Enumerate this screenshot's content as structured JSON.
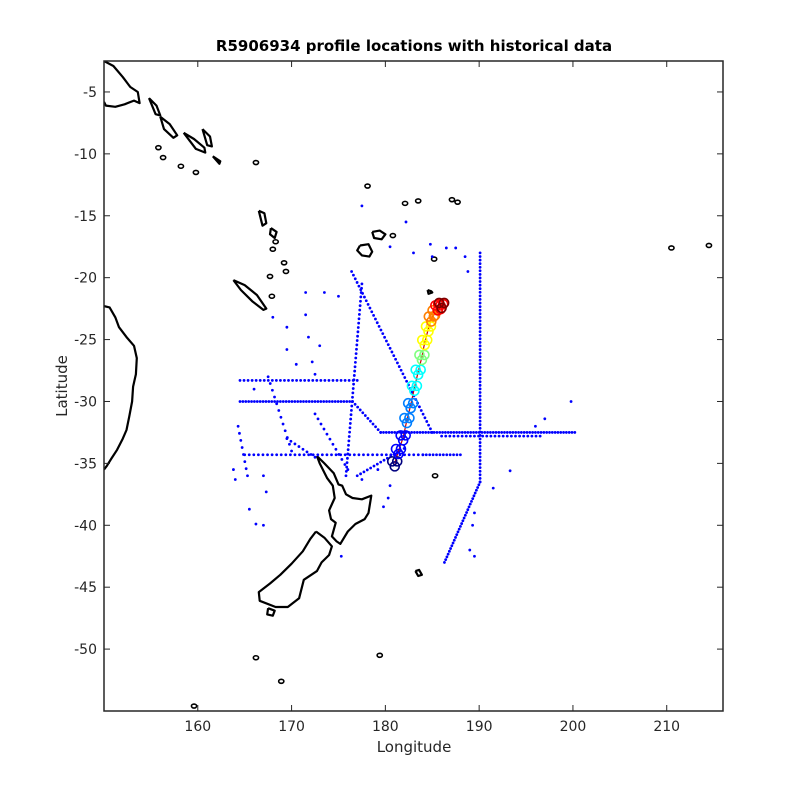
{
  "chart_data": {
    "type": "scatter",
    "title": "R5906934 profile locations with historical data",
    "xlabel": "Longitude",
    "ylabel": "Latitude",
    "xlim": [
      150,
      216
    ],
    "ylim": [
      -55,
      -2.5
    ],
    "x_ticks": [
      160,
      170,
      180,
      190,
      200,
      210
    ],
    "y_ticks": [
      -5,
      -10,
      -15,
      -20,
      -25,
      -30,
      -35,
      -40,
      -45,
      -50
    ],
    "grid": false,
    "colors": {
      "historical": "#0000ff",
      "coastline": "#000000",
      "track": "#cc0000",
      "colormap": [
        "#00007f",
        "#0000ff",
        "#007fff",
        "#00ffff",
        "#7fff7f",
        "#ffff00",
        "#ff7f00",
        "#ff0000",
        "#7f0000"
      ]
    },
    "series": [
      {
        "role": "historical profile locations",
        "tracks": [
          {
            "lon": [
              176.4,
              185.0
            ],
            "lat": [
              -19.5,
              -32.5
            ],
            "n": 45
          },
          {
            "lon": [
              177.5,
              175.8
            ],
            "lat": [
              -20.5,
              -36.0
            ],
            "n": 45
          },
          {
            "lon": [
              190.1,
              190.1
            ],
            "lat": [
              -18.0,
              -36.5
            ],
            "n": 65
          },
          {
            "lon": [
              190.1,
              186.3
            ],
            "lat": [
              -36.5,
              -43.0
            ],
            "n": 30
          },
          {
            "lon": [
              164.5,
              176.5
            ],
            "lat": [
              -30.0,
              -30.0
            ],
            "n": 40
          },
          {
            "lon": [
              176.5,
              179.5
            ],
            "lat": [
              -30.0,
              -32.5
            ],
            "n": 12
          },
          {
            "lon": [
              179.5,
              200.2
            ],
            "lat": [
              -32.5,
              -32.5
            ],
            "n": 70
          },
          {
            "lon": [
              165.0,
              184.0
            ],
            "lat": [
              -34.3,
              -34.3
            ],
            "n": 40
          },
          {
            "lon": [
              164.5,
              177.0
            ],
            "lat": [
              -28.3,
              -28.3
            ],
            "n": 30
          },
          {
            "lon": [
              177.0,
              182.0
            ],
            "lat": [
              -36.0,
              -33.8
            ],
            "n": 15
          },
          {
            "lon": [
              184.0,
              188.0
            ],
            "lat": [
              -34.3,
              -34.3
            ],
            "n": 12
          },
          {
            "lon": [
              186.0,
              196.5
            ],
            "lat": [
              -32.8,
              -32.8
            ],
            "n": 25
          },
          {
            "lon": [
              172.5,
              176.0
            ],
            "lat": [
              -31.0,
              -35.5
            ],
            "n": 12
          },
          {
            "lon": [
              167.5,
              170.0
            ],
            "lat": [
              -28.0,
              -34.0
            ],
            "n": 12
          },
          {
            "lon": [
              164.3,
              165.3
            ],
            "lat": [
              -32.0,
              -36.0
            ],
            "n": 8
          },
          {
            "lon": [
              169.5,
              172.5
            ],
            "lat": [
              -33.0,
              -34.5
            ],
            "n": 8
          }
        ],
        "points": [
          {
            "lon": 171.5,
            "lat": -21.2
          },
          {
            "lon": 173.5,
            "lat": -21.2
          },
          {
            "lon": 175.0,
            "lat": -21.5
          },
          {
            "lon": 168.0,
            "lat": -23.2
          },
          {
            "lon": 169.5,
            "lat": -24.0
          },
          {
            "lon": 169.5,
            "lat": -25.8
          },
          {
            "lon": 171.5,
            "lat": -23.0
          },
          {
            "lon": 171.8,
            "lat": -24.8
          },
          {
            "lon": 172.2,
            "lat": -26.8
          },
          {
            "lon": 172.5,
            "lat": -27.8
          },
          {
            "lon": 173.0,
            "lat": -25.5
          },
          {
            "lon": 170.5,
            "lat": -27.0
          },
          {
            "lon": 177.5,
            "lat": -14.2
          },
          {
            "lon": 182.2,
            "lat": -15.5
          },
          {
            "lon": 180.5,
            "lat": -17.5
          },
          {
            "lon": 184.8,
            "lat": -17.3
          },
          {
            "lon": 185.0,
            "lat": -18.3
          },
          {
            "lon": 186.5,
            "lat": -17.6
          },
          {
            "lon": 187.5,
            "lat": -17.6
          },
          {
            "lon": 188.5,
            "lat": -18.3
          },
          {
            "lon": 188.8,
            "lat": -19.5
          },
          {
            "lon": 183.0,
            "lat": -18.0
          },
          {
            "lon": 193.3,
            "lat": -35.6
          },
          {
            "lon": 191.5,
            "lat": -37.0
          },
          {
            "lon": 189.5,
            "lat": -39.0
          },
          {
            "lon": 189.3,
            "lat": -40.0
          },
          {
            "lon": 189.0,
            "lat": -42.0
          },
          {
            "lon": 189.5,
            "lat": -42.5
          },
          {
            "lon": 197.0,
            "lat": -31.4
          },
          {
            "lon": 199.8,
            "lat": -30.0
          },
          {
            "lon": 196.0,
            "lat": -32.0
          },
          {
            "lon": 165.5,
            "lat": -38.7
          },
          {
            "lon": 166.2,
            "lat": -39.9
          },
          {
            "lon": 167.0,
            "lat": -40.0
          },
          {
            "lon": 167.0,
            "lat": -36.0
          },
          {
            "lon": 167.3,
            "lat": -37.3
          },
          {
            "lon": 175.3,
            "lat": -42.5
          },
          {
            "lon": 179.2,
            "lat": -35.5
          },
          {
            "lon": 180.5,
            "lat": -36.8
          },
          {
            "lon": 180.3,
            "lat": -37.8
          },
          {
            "lon": 179.8,
            "lat": -38.5
          },
          {
            "lon": 163.8,
            "lat": -35.5
          },
          {
            "lon": 164.0,
            "lat": -36.3
          },
          {
            "lon": 166.0,
            "lat": -29.0
          },
          {
            "lon": 177.5,
            "lat": -36.3
          }
        ]
      },
      {
        "role": "float trajectory",
        "lon": [
          181.0,
          181.4,
          181.9,
          182.3,
          182.7,
          183.1,
          183.5,
          183.9,
          184.2,
          184.6,
          184.9,
          185.3,
          185.6,
          185.9,
          186.0
        ],
        "lat": [
          -35.0,
          -34.0,
          -32.9,
          -31.5,
          -30.3,
          -28.9,
          -27.6,
          -26.4,
          -25.2,
          -24.1,
          -23.3,
          -22.8,
          -22.4,
          -22.3,
          -22.2
        ]
      }
    ]
  },
  "coastlines": [
    {
      "name": "australia",
      "lon": [
        150,
        150.6,
        151.2,
        151.6,
        152.4,
        153.2,
        153.5,
        153.4,
        153.1,
        153.0,
        152.7,
        152.4,
        152.0,
        151.4,
        150.8,
        150.3,
        150
      ],
      "lat": [
        -22.3,
        -22.4,
        -23.2,
        -24.0,
        -24.8,
        -25.5,
        -26.5,
        -27.8,
        -28.8,
        -30.0,
        -31.2,
        -32.3,
        -33.0,
        -33.9,
        -34.6,
        -35.2,
        -35.5
      ]
    },
    {
      "name": "new-guinea",
      "lon": [
        150,
        151.0,
        152.0,
        152.8,
        153.6,
        153.8,
        153.2,
        152.2,
        151.2,
        150.2,
        150
      ],
      "lat": [
        -2.5,
        -2.9,
        -3.8,
        -4.6,
        -5.0,
        -5.9,
        -5.7,
        -6.0,
        -6.2,
        -6.1,
        -5.8
      ]
    },
    {
      "name": "new-caledonia",
      "lon": [
        163.8,
        165.0,
        166.3,
        167.3,
        167.0,
        165.8,
        164.6,
        163.8
      ],
      "lat": [
        -20.2,
        -20.6,
        -21.4,
        -22.5,
        -22.6,
        -21.9,
        -21.0,
        -20.2
      ]
    },
    {
      "name": "vanuatu-north",
      "lon": [
        166.5,
        167.1,
        167.3,
        166.9,
        166.5
      ],
      "lat": [
        -14.6,
        -14.8,
        -15.6,
        -15.8,
        -14.6
      ]
    },
    {
      "name": "vanuatu-mid",
      "lon": [
        167.8,
        168.4,
        168.2,
        167.7,
        167.8
      ],
      "lat": [
        -16.0,
        -16.3,
        -16.8,
        -16.5,
        -16.0
      ]
    },
    {
      "name": "fiji-vitilevu",
      "lon": [
        177.3,
        178.2,
        178.6,
        178.3,
        177.5,
        177.0,
        177.3
      ],
      "lat": [
        -17.4,
        -17.3,
        -17.9,
        -18.3,
        -18.2,
        -17.8,
        -17.4
      ]
    },
    {
      "name": "fiji-vanualevu",
      "lon": [
        178.6,
        179.4,
        180.0,
        179.6,
        178.8,
        178.6
      ],
      "lat": [
        -16.3,
        -16.2,
        -16.5,
        -16.9,
        -16.8,
        -16.3
      ]
    },
    {
      "name": "solomon-a",
      "lon": [
        156.0,
        157.0,
        157.8,
        157.4,
        156.4,
        156.0
      ],
      "lat": [
        -7.0,
        -7.6,
        -8.5,
        -8.7,
        -8.0,
        -7.0
      ]
    },
    {
      "name": "solomon-b",
      "lon": [
        158.5,
        159.6,
        160.7,
        160.8,
        159.8,
        158.5
      ],
      "lat": [
        -8.3,
        -8.8,
        -9.5,
        -9.9,
        -9.6,
        -8.3
      ]
    },
    {
      "name": "solomon-c",
      "lon": [
        160.5,
        161.3,
        161.5,
        161.0,
        160.5
      ],
      "lat": [
        -8.0,
        -8.6,
        -9.4,
        -9.3,
        -8.0
      ]
    },
    {
      "name": "solomon-d",
      "lon": [
        161.6,
        162.4,
        162.3,
        161.6
      ],
      "lat": [
        -10.2,
        -10.6,
        -10.8,
        -10.2
      ]
    },
    {
      "name": "solomon-e",
      "lon": [
        154.8,
        155.6,
        156.0,
        155.5,
        154.8
      ],
      "lat": [
        -5.5,
        -6.1,
        -6.9,
        -6.8,
        -5.5
      ]
    },
    {
      "name": "nz-north",
      "lon": [
        172.7,
        173.5,
        174.5,
        175.0,
        175.4,
        175.8,
        176.5,
        177.5,
        178.5,
        178.2,
        177.8,
        176.8,
        176.0,
        175.2,
        174.8,
        174.3,
        174.7,
        174.2,
        174.0,
        174.6,
        174.4,
        173.8,
        173.0,
        172.7
      ],
      "lat": [
        -34.4,
        -35.0,
        -35.8,
        -36.7,
        -36.8,
        -37.5,
        -37.8,
        -37.9,
        -37.6,
        -39.0,
        -39.5,
        -39.9,
        -40.5,
        -41.5,
        -41.3,
        -40.9,
        -39.8,
        -39.5,
        -38.8,
        -37.8,
        -36.8,
        -36.2,
        -35.0,
        -34.4
      ]
    },
    {
      "name": "nz-south",
      "lon": [
        172.6,
        173.5,
        174.3,
        174.0,
        173.2,
        172.7,
        171.3,
        170.8,
        169.6,
        168.3,
        166.6,
        166.5,
        167.7,
        168.8,
        170.0,
        171.2,
        172.0,
        172.6
      ],
      "lat": [
        -40.5,
        -41.0,
        -41.7,
        -42.4,
        -43.0,
        -43.7,
        -44.4,
        -45.9,
        -46.6,
        -46.6,
        -46.1,
        -45.4,
        -44.7,
        -44.0,
        -43.1,
        -42.1,
        -41.1,
        -40.5
      ]
    },
    {
      "name": "stewart-island",
      "lon": [
        167.5,
        168.2,
        168.0,
        167.4,
        167.5
      ],
      "lat": [
        -46.7,
        -46.9,
        -47.3,
        -47.2,
        -46.7
      ]
    },
    {
      "name": "chatham",
      "lon": [
        183.2,
        183.6,
        183.9,
        183.5,
        183.2
      ],
      "lat": [
        -43.7,
        -43.6,
        -44.0,
        -44.1,
        -43.7
      ]
    },
    {
      "name": "tonga",
      "lon": [
        184.5,
        184.9,
        185.0,
        184.6,
        184.5
      ],
      "lat": [
        -21.0,
        -21.1,
        -21.2,
        -21.3,
        -21.0
      ]
    }
  ],
  "islands": [
    {
      "lon": 155.8,
      "lat": -9.5
    },
    {
      "lon": 156.3,
      "lat": -10.3
    },
    {
      "lon": 158.2,
      "lat": -11.0
    },
    {
      "lon": 159.8,
      "lat": -11.5
    },
    {
      "lon": 166.2,
      "lat": -10.7
    },
    {
      "lon": 168.0,
      "lat": -17.7
    },
    {
      "lon": 169.2,
      "lat": -18.8
    },
    {
      "lon": 169.4,
      "lat": -19.5
    },
    {
      "lon": 168.3,
      "lat": -17.1
    },
    {
      "lon": 167.7,
      "lat": -19.9
    },
    {
      "lon": 167.9,
      "lat": -21.5
    },
    {
      "lon": 180.8,
      "lat": -16.6
    },
    {
      "lon": 182.1,
      "lat": -14.0
    },
    {
      "lon": 183.5,
      "lat": -13.8
    },
    {
      "lon": 187.1,
      "lat": -13.7
    },
    {
      "lon": 187.7,
      "lat": -13.9
    },
    {
      "lon": 185.2,
      "lat": -18.5
    },
    {
      "lon": 210.5,
      "lat": -17.6
    },
    {
      "lon": 214.5,
      "lat": -17.4
    },
    {
      "lon": 179.4,
      "lat": -50.5
    },
    {
      "lon": 159.6,
      "lat": -54.6
    },
    {
      "lon": 168.9,
      "lat": -52.6
    },
    {
      "lon": 166.2,
      "lat": -50.7
    },
    {
      "lon": 178.1,
      "lat": -12.6
    },
    {
      "lon": 185.3,
      "lat": -36.0
    }
  ]
}
